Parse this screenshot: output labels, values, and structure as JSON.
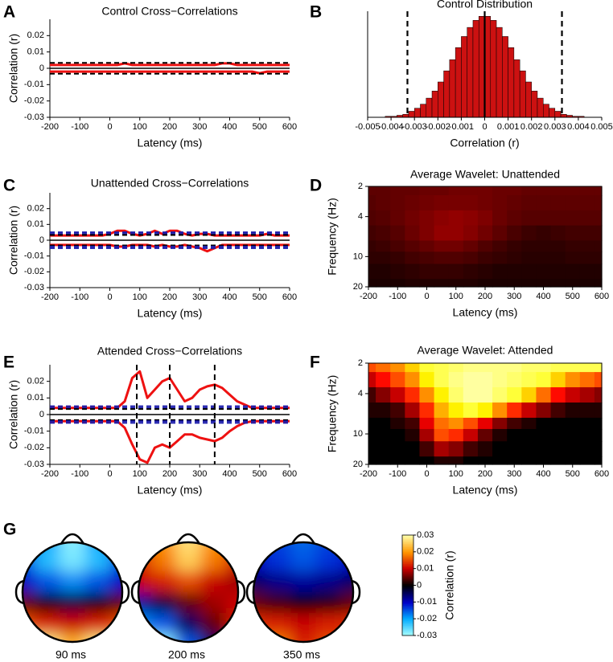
{
  "chart_data": [
    {
      "panel": "A",
      "type": "line",
      "title": "Control Cross−Correlations",
      "x_label": "Latency (ms)",
      "y_label": "Correlation (r)",
      "x": [
        -200,
        -175,
        -150,
        -125,
        -100,
        -75,
        -50,
        -25,
        0,
        25,
        50,
        75,
        100,
        125,
        150,
        175,
        200,
        225,
        250,
        275,
        300,
        325,
        350,
        375,
        400,
        425,
        450,
        475,
        500,
        525,
        550,
        575,
        600
      ],
      "series": [
        {
          "color": "#ee1111",
          "values": [
            0.002,
            0.002,
            0.002,
            0.002,
            0.002,
            0.002,
            0.002,
            0.002,
            0.002,
            0.002,
            0.003,
            0.002,
            0.002,
            0.002,
            0.002,
            0.002,
            0.002,
            0.002,
            0.002,
            0.002,
            0.002,
            0.002,
            0.002,
            0.003,
            0.003,
            0.002,
            0.002,
            0.002,
            0.002,
            0.002,
            0.002,
            0.002,
            0.002
          ]
        },
        {
          "color": "#ee1111",
          "values": [
            -0.002,
            -0.002,
            -0.002,
            -0.002,
            -0.002,
            -0.002,
            -0.002,
            -0.002,
            -0.002,
            -0.002,
            -0.002,
            -0.002,
            -0.002,
            -0.002,
            -0.002,
            -0.002,
            -0.002,
            -0.002,
            -0.002,
            -0.002,
            -0.002,
            -0.002,
            -0.002,
            -0.002,
            -0.002,
            -0.002,
            -0.002,
            -0.002,
            -0.003,
            -0.002,
            -0.002,
            -0.002,
            -0.002
          ]
        }
      ],
      "hlines": [
        {
          "value": 0.0033,
          "color": "#000000"
        },
        {
          "value": -0.0033,
          "color": "#000000"
        }
      ],
      "xlim": [
        -200,
        600
      ],
      "ylim": [
        -0.03,
        0.03
      ],
      "xticks": [
        -200,
        -100,
        0,
        100,
        200,
        300,
        400,
        500,
        600
      ],
      "yticks": [
        0.02,
        0.01,
        0,
        -0.01,
        -0.02,
        -0.03
      ]
    },
    {
      "panel": "B",
      "type": "histogram",
      "title": "Control Distribution",
      "x_label": "Correlation (r)",
      "color": "#cc1111",
      "bins": [
        -0.005,
        -0.00475,
        -0.0045,
        -0.00425,
        -0.004,
        -0.00375,
        -0.0035,
        -0.00325,
        -0.003,
        -0.00275,
        -0.0025,
        -0.00225,
        -0.002,
        -0.00175,
        -0.0015,
        -0.00125,
        -0.001,
        -0.00075,
        -0.0005,
        -0.00025,
        0,
        0.00025,
        0.0005,
        0.00075,
        0.001,
        0.00125,
        0.0015,
        0.00175,
        0.002,
        0.00225,
        0.0025,
        0.00275,
        0.003,
        0.00325,
        0.0035,
        0.00375,
        0.004,
        0.00425,
        0.0045,
        0.00475,
        0.005
      ],
      "values": [
        0,
        0,
        0,
        1,
        1,
        2,
        3,
        6,
        9,
        13,
        19,
        26,
        35,
        46,
        57,
        69,
        80,
        89,
        96,
        100,
        100,
        96,
        89,
        80,
        69,
        57,
        46,
        35,
        26,
        19,
        13,
        9,
        6,
        3,
        2,
        1,
        1,
        0,
        0,
        0
      ],
      "vlines": [
        {
          "value": -0.0033,
          "dashed": true
        },
        {
          "value": 0,
          "dashed": false
        },
        {
          "value": 0.0033,
          "dashed": true
        }
      ],
      "xlim": [
        -0.005,
        0.005
      ],
      "ylim": [
        0,
        105
      ],
      "xticks": [
        -0.005,
        -0.004,
        -0.003,
        -0.002,
        -0.001,
        0,
        0.001,
        0.002,
        0.003,
        0.004,
        0.005
      ]
    },
    {
      "panel": "C",
      "type": "line",
      "title": "Unattended Cross−Correlations",
      "x_label": "Latency (ms)",
      "y_label": "Correlation (r)",
      "x": [
        -200,
        -175,
        -150,
        -125,
        -100,
        -75,
        -50,
        -25,
        0,
        25,
        50,
        75,
        100,
        125,
        150,
        175,
        200,
        225,
        250,
        275,
        300,
        325,
        350,
        375,
        400,
        425,
        450,
        475,
        500,
        525,
        550,
        575,
        600
      ],
      "series": [
        {
          "color": "#ee1111",
          "values": [
            0.003,
            0.003,
            0.003,
            0.003,
            0.003,
            0.003,
            0.003,
            0.003,
            0.004,
            0.006,
            0.006,
            0.004,
            0.003,
            0.004,
            0.006,
            0.004,
            0.006,
            0.006,
            0.004,
            0.003,
            0.004,
            0.004,
            0.003,
            0.003,
            0.003,
            0.003,
            0.003,
            0.003,
            0.003,
            0.004,
            0.003,
            0.003,
            0.003
          ]
        },
        {
          "color": "#ee1111",
          "values": [
            -0.003,
            -0.003,
            -0.003,
            -0.003,
            -0.003,
            -0.003,
            -0.003,
            -0.003,
            -0.003,
            -0.004,
            -0.004,
            -0.003,
            -0.003,
            -0.003,
            -0.004,
            -0.003,
            -0.004,
            -0.004,
            -0.003,
            -0.004,
            -0.005,
            -0.007,
            -0.005,
            -0.003,
            -0.003,
            -0.003,
            -0.003,
            -0.003,
            -0.003,
            -0.003,
            -0.003,
            -0.003,
            -0.003
          ]
        }
      ],
      "hlines": [
        {
          "value": 0.005,
          "color": "#1a1aaa"
        },
        {
          "value": 0.004,
          "color": "#1a1aaa"
        },
        {
          "value": 0.0033,
          "color": "#000000"
        },
        {
          "value": -0.0033,
          "color": "#000000"
        },
        {
          "value": -0.004,
          "color": "#1a1aaa"
        },
        {
          "value": -0.005,
          "color": "#1a1aaa"
        }
      ],
      "xlim": [
        -200,
        600
      ],
      "ylim": [
        -0.03,
        0.03
      ],
      "xticks": [
        -200,
        -100,
        0,
        100,
        200,
        300,
        400,
        500,
        600
      ],
      "yticks": [
        0.02,
        0.01,
        0,
        -0.01,
        -0.02,
        -0.03
      ]
    },
    {
      "panel": "D",
      "type": "heatmap",
      "title": "Average Wavelet: Unattended",
      "x_label": "Latency (ms)",
      "y_label": "Frequency (Hz)",
      "colormap": "hot",
      "log_y": true,
      "x": [
        -200,
        -150,
        -100,
        -50,
        0,
        50,
        100,
        150,
        200,
        250,
        300,
        350,
        400,
        450,
        500,
        550,
        600
      ],
      "y": [
        2,
        3,
        4,
        6,
        8,
        10,
        14,
        20
      ],
      "z": [
        [
          0.14,
          0.14,
          0.15,
          0.15,
          0.16,
          0.16,
          0.17,
          0.17,
          0.17,
          0.16,
          0.16,
          0.15,
          0.15,
          0.15,
          0.15,
          0.15,
          0.15
        ],
        [
          0.13,
          0.14,
          0.15,
          0.16,
          0.17,
          0.18,
          0.18,
          0.18,
          0.17,
          0.16,
          0.15,
          0.14,
          0.14,
          0.14,
          0.14,
          0.14,
          0.14
        ],
        [
          0.12,
          0.13,
          0.15,
          0.17,
          0.19,
          0.21,
          0.22,
          0.21,
          0.19,
          0.16,
          0.14,
          0.13,
          0.13,
          0.13,
          0.13,
          0.13,
          0.13
        ],
        [
          0.1,
          0.11,
          0.13,
          0.16,
          0.19,
          0.22,
          0.22,
          0.2,
          0.17,
          0.14,
          0.11,
          0.09,
          0.08,
          0.09,
          0.1,
          0.1,
          0.1
        ],
        [
          0.08,
          0.09,
          0.11,
          0.13,
          0.15,
          0.17,
          0.17,
          0.15,
          0.12,
          0.1,
          0.08,
          0.07,
          0.07,
          0.07,
          0.08,
          0.08,
          0.08
        ],
        [
          0.07,
          0.07,
          0.08,
          0.1,
          0.11,
          0.12,
          0.12,
          0.11,
          0.09,
          0.08,
          0.07,
          0.06,
          0.06,
          0.06,
          0.07,
          0.07,
          0.07
        ],
        [
          0.05,
          0.05,
          0.06,
          0.07,
          0.08,
          0.08,
          0.08,
          0.07,
          0.06,
          0.05,
          0.05,
          0.05,
          0.05,
          0.05,
          0.05,
          0.05,
          0.05
        ],
        [
          0.04,
          0.04,
          0.04,
          0.05,
          0.05,
          0.05,
          0.05,
          0.05,
          0.04,
          0.04,
          0.04,
          0.04,
          0.04,
          0.04,
          0.04,
          0.04,
          0.04
        ]
      ],
      "xlim": [
        -200,
        600
      ],
      "ylim": [
        2,
        20
      ],
      "xticks": [
        -200,
        -100,
        0,
        100,
        200,
        300,
        400,
        500,
        600
      ],
      "yticks": [
        2,
        4,
        10,
        20
      ]
    },
    {
      "panel": "E",
      "type": "line",
      "title": "Attended Cross−Correlations",
      "x_label": "Latency (ms)",
      "y_label": "Correlation (r)",
      "x": [
        -200,
        -175,
        -150,
        -125,
        -100,
        -75,
        -50,
        -25,
        0,
        25,
        50,
        75,
        100,
        125,
        150,
        175,
        200,
        225,
        250,
        275,
        300,
        325,
        350,
        375,
        400,
        425,
        450,
        475,
        500,
        525,
        550,
        575,
        600
      ],
      "series": [
        {
          "color": "#ee1111",
          "values": [
            0.004,
            0.004,
            0.004,
            0.004,
            0.004,
            0.004,
            0.004,
            0.004,
            0.004,
            0.004,
            0.008,
            0.022,
            0.026,
            0.01,
            0.015,
            0.02,
            0.022,
            0.015,
            0.008,
            0.01,
            0.015,
            0.017,
            0.018,
            0.016,
            0.012,
            0.008,
            0.006,
            0.004,
            0.004,
            0.004,
            0.004,
            0.004,
            0.004
          ]
        },
        {
          "color": "#ee1111",
          "values": [
            -0.004,
            -0.004,
            -0.004,
            -0.004,
            -0.004,
            -0.004,
            -0.004,
            -0.004,
            -0.004,
            -0.004,
            -0.008,
            -0.018,
            -0.027,
            -0.029,
            -0.02,
            -0.018,
            -0.02,
            -0.016,
            -0.012,
            -0.012,
            -0.014,
            -0.015,
            -0.016,
            -0.014,
            -0.01,
            -0.007,
            -0.005,
            -0.004,
            -0.004,
            -0.004,
            -0.004,
            -0.004,
            -0.004
          ]
        }
      ],
      "hlines": [
        {
          "value": 0.005,
          "color": "#1a1aaa"
        },
        {
          "value": 0.004,
          "color": "#1a1aaa"
        },
        {
          "value": 0.0033,
          "color": "#000000"
        },
        {
          "value": -0.0033,
          "color": "#000000"
        },
        {
          "value": -0.004,
          "color": "#1a1aaa"
        },
        {
          "value": -0.005,
          "color": "#1a1aaa"
        }
      ],
      "vlines": [
        {
          "value": 90,
          "dashed": true
        },
        {
          "value": 200,
          "dashed": true
        },
        {
          "value": 350,
          "dashed": true
        }
      ],
      "xlim": [
        -200,
        600
      ],
      "ylim": [
        -0.03,
        0.03
      ],
      "xticks": [
        -200,
        -100,
        0,
        100,
        200,
        300,
        400,
        500,
        600
      ],
      "yticks": [
        0.02,
        0.01,
        0,
        -0.01,
        -0.02,
        -0.03
      ]
    },
    {
      "panel": "F",
      "type": "heatmap",
      "title": "Average Wavelet: Attended",
      "x_label": "Latency (ms)",
      "y_label": "Frequency (Hz)",
      "colormap": "hot",
      "log_y": true,
      "x": [
        -200,
        -150,
        -100,
        -50,
        0,
        50,
        100,
        150,
        200,
        250,
        300,
        350,
        400,
        450,
        500,
        550,
        600
      ],
      "y": [
        2,
        3,
        4,
        6,
        8,
        10,
        14,
        20
      ],
      "z": [
        [
          0.5,
          0.55,
          0.6,
          0.7,
          0.8,
          0.85,
          0.9,
          0.95,
          0.95,
          0.95,
          0.95,
          0.9,
          0.9,
          0.85,
          0.85,
          0.85,
          0.85
        ],
        [
          0.3,
          0.4,
          0.5,
          0.6,
          0.75,
          0.85,
          0.95,
          1.0,
          1.0,
          0.95,
          0.9,
          0.85,
          0.8,
          0.7,
          0.6,
          0.55,
          0.5
        ],
        [
          0.1,
          0.2,
          0.3,
          0.45,
          0.6,
          0.75,
          0.9,
          1.0,
          1.0,
          0.9,
          0.8,
          0.7,
          0.55,
          0.4,
          0.3,
          0.25,
          0.2
        ],
        [
          0.05,
          0.05,
          0.1,
          0.25,
          0.45,
          0.65,
          0.75,
          0.8,
          0.75,
          0.6,
          0.45,
          0.3,
          0.2,
          0.1,
          0.05,
          0.05,
          0.05
        ],
        [
          0,
          0,
          0.05,
          0.1,
          0.35,
          0.55,
          0.6,
          0.5,
          0.35,
          0.2,
          0.1,
          0.05,
          0,
          0,
          0,
          0,
          0
        ],
        [
          0,
          0,
          0,
          0.05,
          0.25,
          0.5,
          0.45,
          0.3,
          0.15,
          0.05,
          0,
          0,
          0,
          0,
          0,
          0,
          0
        ],
        [
          0,
          0,
          0,
          0,
          0.1,
          0.25,
          0.2,
          0.1,
          0.05,
          0,
          0,
          0,
          0,
          0,
          0,
          0,
          0
        ],
        [
          0,
          0,
          0,
          0,
          0,
          0.05,
          0.05,
          0,
          0,
          0,
          0,
          0,
          0,
          0,
          0,
          0,
          0
        ]
      ],
      "xlim": [
        -200,
        600
      ],
      "ylim": [
        2,
        20
      ],
      "xticks": [
        -200,
        -100,
        0,
        100,
        200,
        300,
        400,
        500,
        600
      ],
      "yticks": [
        2,
        4,
        10,
        20
      ]
    },
    {
      "panel": "G",
      "type": "topomap",
      "colorbar_label": "Correlation (r)",
      "clim": [
        -0.03,
        0.03
      ],
      "cticks": [
        0.03,
        0.02,
        0.01,
        0,
        -0.01,
        -0.02,
        -0.03
      ],
      "maps": [
        {
          "label": "90 ms",
          "z": [
            [
              -0.012,
              -0.02,
              -0.028,
              -0.02,
              -0.012
            ],
            [
              -0.015,
              -0.022,
              -0.027,
              -0.022,
              -0.015
            ],
            [
              -0.01,
              -0.015,
              -0.018,
              -0.015,
              -0.01
            ],
            [
              0.005,
              0,
              -0.003,
              0,
              0.005
            ],
            [
              0.015,
              0.012,
              0.01,
              0.012,
              0.015
            ],
            [
              0.025,
              0.028,
              0.022,
              0.028,
              0.025
            ]
          ]
        },
        {
          "label": "200 ms",
          "z": [
            [
              0.012,
              0.02,
              0.027,
              0.02,
              0.012
            ],
            [
              0.012,
              0.018,
              0.025,
              0.018,
              0.012
            ],
            [
              0.01,
              0.012,
              0.015,
              0.01,
              0.008
            ],
            [
              -0.008,
              -0.003,
              0.005,
              0.008,
              0.01
            ],
            [
              -0.018,
              -0.015,
              -0.005,
              0.005,
              0.012
            ],
            [
              -0.025,
              -0.028,
              -0.015,
              -0.005,
              0.008
            ]
          ]
        },
        {
          "label": "350 ms",
          "z": [
            [
              -0.01,
              -0.014,
              -0.016,
              -0.014,
              -0.01
            ],
            [
              -0.01,
              -0.013,
              -0.015,
              -0.013,
              -0.01
            ],
            [
              -0.005,
              -0.007,
              -0.008,
              -0.007,
              -0.005
            ],
            [
              0.005,
              0.003,
              0,
              0.002,
              0.005
            ],
            [
              0.013,
              0.012,
              0.01,
              0.012,
              0.013
            ],
            [
              0.015,
              0.018,
              0.012,
              0.015,
              0.012
            ]
          ]
        }
      ]
    }
  ]
}
